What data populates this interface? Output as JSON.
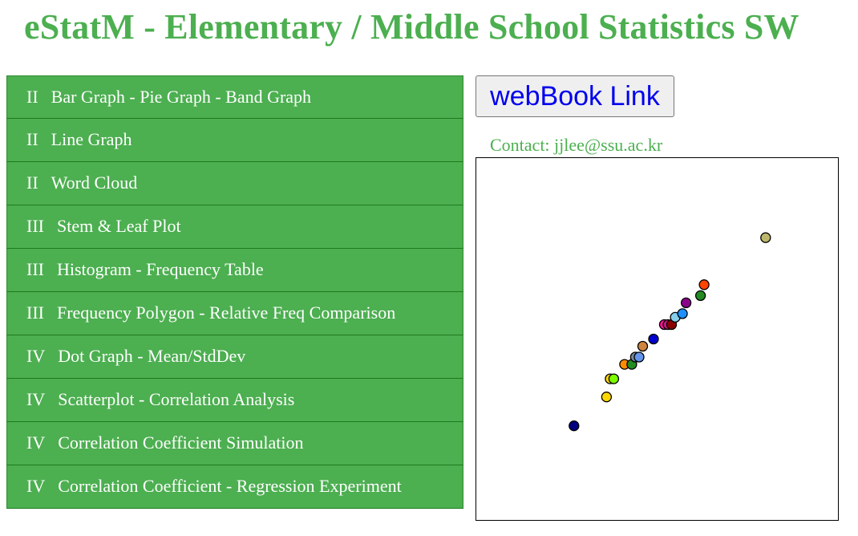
{
  "header": {
    "title": "eStatM - Elementary / Middle School Statistics SW"
  },
  "menu": {
    "items": [
      {
        "grade": "II",
        "label": "Bar Graph - Pie Graph - Band Graph"
      },
      {
        "grade": "II",
        "label": "Line Graph"
      },
      {
        "grade": "II",
        "label": "Word Cloud"
      },
      {
        "grade": "III",
        "label": "Stem & Leaf Plot"
      },
      {
        "grade": "III",
        "label": "Histogram - Frequency Table"
      },
      {
        "grade": "III",
        "label": "Frequency Polygon - Relative Freq Comparison"
      },
      {
        "grade": "IV",
        "label": "Dot Graph - Mean/StdDev"
      },
      {
        "grade": "IV",
        "label": "Scatterplot - Correlation Analysis"
      },
      {
        "grade": "IV",
        "label": "Correlation Coefficient Simulation"
      },
      {
        "grade": "IV",
        "label": "Correlation Coefficient - Regression Experiment"
      }
    ]
  },
  "webbook": {
    "label": "webBook Link"
  },
  "contact": {
    "text": "Contact: jjlee@ssu.ac.kr"
  },
  "colors": {
    "brand_green": "#4caf50",
    "link_blue": "#0000ee"
  },
  "chart_data": {
    "type": "scatter",
    "xlim": [
      0,
      100
    ],
    "ylim": [
      0,
      100
    ],
    "grid": false,
    "points": [
      {
        "x": 27,
        "y": 26,
        "color": "#000080"
      },
      {
        "x": 36,
        "y": 34,
        "color": "#ffd700"
      },
      {
        "x": 37,
        "y": 39,
        "color": "#ffd700"
      },
      {
        "x": 38,
        "y": 39,
        "color": "#7cfc00"
      },
      {
        "x": 41,
        "y": 43,
        "color": "#ff8c00"
      },
      {
        "x": 43,
        "y": 43,
        "color": "#228b22"
      },
      {
        "x": 44,
        "y": 45,
        "color": "#778899"
      },
      {
        "x": 45,
        "y": 45,
        "color": "#6495ed"
      },
      {
        "x": 46,
        "y": 48,
        "color": "#cd853f"
      },
      {
        "x": 49,
        "y": 50,
        "color": "#0000cd"
      },
      {
        "x": 52,
        "y": 54,
        "color": "#ff1493"
      },
      {
        "x": 53,
        "y": 54,
        "color": "#c71585"
      },
      {
        "x": 54,
        "y": 54,
        "color": "#8b0000"
      },
      {
        "x": 55,
        "y": 56,
        "color": "#87ceeb"
      },
      {
        "x": 57,
        "y": 57,
        "color": "#1e90ff"
      },
      {
        "x": 58,
        "y": 60,
        "color": "#8b008b"
      },
      {
        "x": 62,
        "y": 62,
        "color": "#228b22"
      },
      {
        "x": 63,
        "y": 65,
        "color": "#ff4500"
      },
      {
        "x": 80,
        "y": 78,
        "color": "#bdb76b"
      }
    ]
  }
}
